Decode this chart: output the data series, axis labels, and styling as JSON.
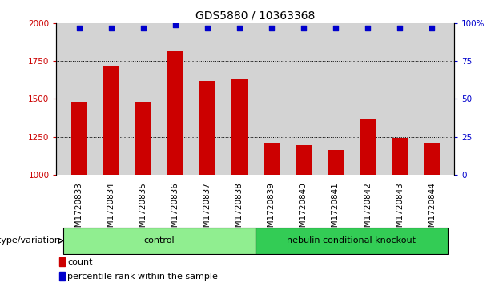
{
  "title": "GDS5880 / 10363368",
  "samples": [
    "GSM1720833",
    "GSM1720834",
    "GSM1720835",
    "GSM1720836",
    "GSM1720837",
    "GSM1720838",
    "GSM1720839",
    "GSM1720840",
    "GSM1720841",
    "GSM1720842",
    "GSM1720843",
    "GSM1720844"
  ],
  "counts": [
    1480,
    1720,
    1480,
    1820,
    1620,
    1630,
    1210,
    1195,
    1165,
    1370,
    1240,
    1205
  ],
  "percentile_ranks": [
    97,
    97,
    97,
    99,
    97,
    97,
    97,
    97,
    97,
    97,
    97,
    97
  ],
  "groups": [
    {
      "label": "control",
      "n": 6,
      "color": "#90EE90"
    },
    {
      "label": "nebulin conditional knockout",
      "n": 6,
      "color": "#33CC55"
    }
  ],
  "bar_color": "#CC0000",
  "dot_color": "#0000CC",
  "ylim_left": [
    1000,
    2000
  ],
  "ylim_right": [
    0,
    100
  ],
  "yticks_left": [
    1000,
    1250,
    1500,
    1750,
    2000
  ],
  "yticks_right": [
    0,
    25,
    50,
    75,
    100
  ],
  "grid_values": [
    1250,
    1500,
    1750
  ],
  "bar_width": 0.5,
  "bg_color": "#D3D3D3",
  "group_label_prefix": "genotype/variation",
  "legend_count_label": "count",
  "legend_percentile_label": "percentile rank within the sample",
  "title_fontsize": 10,
  "tick_fontsize": 7.5,
  "label_fontsize": 8
}
